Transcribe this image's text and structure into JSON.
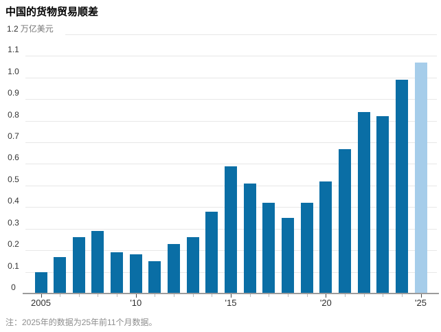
{
  "title": "中国的货物贸易顺差",
  "y_axis": {
    "top_label": "1.2",
    "unit": "万亿美元",
    "tick_labels": [
      "1.1",
      "1.0",
      "0.9",
      "0.8",
      "0.7",
      "0.6",
      "0.5",
      "0.4",
      "0.3",
      "0.2",
      "0.1",
      "0"
    ]
  },
  "x_axis": {
    "labels": [
      {
        "year": 2005,
        "label": "2005"
      },
      {
        "year": 2010,
        "label": "'10"
      },
      {
        "year": 2015,
        "label": "'15"
      },
      {
        "year": 2020,
        "label": "'20"
      },
      {
        "year": 2025,
        "label": "'25"
      }
    ]
  },
  "note": "注：2025年的数据为25年前11个月数据。",
  "colors": {
    "bar": "#0a6ea5",
    "bar_highlight": "#a6cdea",
    "gridline": "#e7e7e7",
    "axis": "#9b9b9b",
    "tick_label": "#333333",
    "unit_text": "#767676",
    "note_text": "#8d8d8d"
  },
  "chart_data": {
    "type": "bar",
    "title": "中国的货物贸易顺差",
    "ylabel": "万亿美元",
    "ylim": [
      0,
      1.2
    ],
    "ytick_step": 0.1,
    "grid": true,
    "legend_position": "none",
    "categories": [
      2005,
      2006,
      2007,
      2008,
      2009,
      2010,
      2011,
      2012,
      2013,
      2014,
      2015,
      2016,
      2017,
      2018,
      2019,
      2020,
      2021,
      2022,
      2023,
      2024,
      2025
    ],
    "values": [
      0.1,
      0.17,
      0.26,
      0.29,
      0.19,
      0.18,
      0.15,
      0.23,
      0.26,
      0.38,
      0.59,
      0.51,
      0.42,
      0.35,
      0.42,
      0.52,
      0.67,
      0.84,
      0.82,
      0.99,
      1.07
    ],
    "highlight": {
      "category": 2025,
      "note": "partial-year value, shown in light blue"
    }
  }
}
